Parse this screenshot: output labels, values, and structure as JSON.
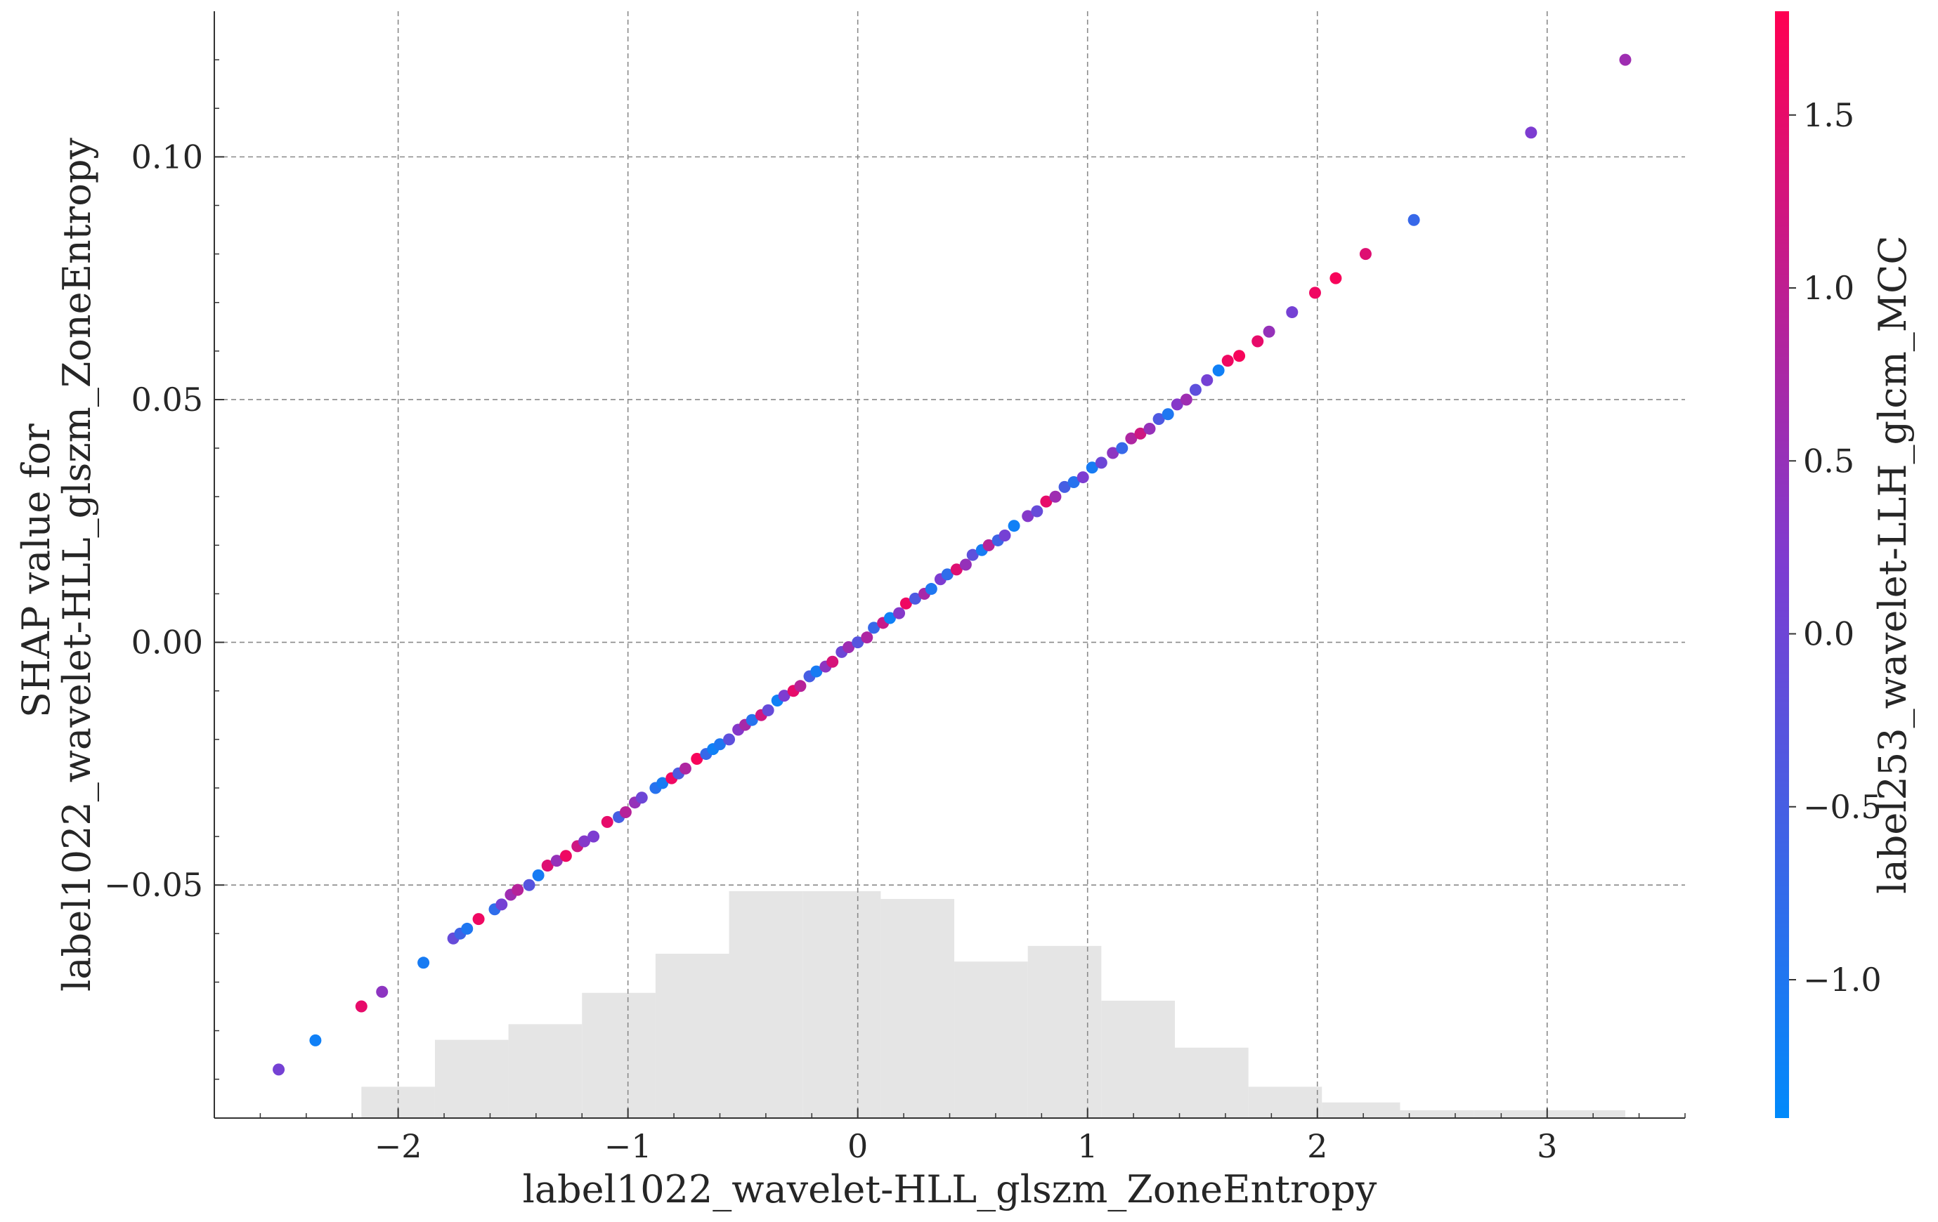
{
  "chart_data": {
    "type": "scatter",
    "title": "",
    "xlabel": "label1022_wavelet-HLL_glszm_ZoneEntropy",
    "ylabel_lines": [
      "SHAP value for",
      "label1022_wavelet-HLL_glszm_ZoneEntropy"
    ],
    "colorbar_label": "label253_wavelet-LLH_glcm_MCC",
    "xlim": [
      -2.8,
      3.6
    ],
    "ylim": [
      -0.098,
      0.13
    ],
    "x_ticks": [
      -2,
      -1,
      0,
      1,
      2,
      3
    ],
    "x_tick_labels": [
      "−2",
      "−1",
      "0",
      "1",
      "2",
      "3"
    ],
    "y_ticks": [
      -0.05,
      0.0,
      0.05,
      0.1
    ],
    "y_tick_labels": [
      "−0.05",
      "0.00",
      "0.05",
      "0.10"
    ],
    "colorbar_range": [
      -1.4,
      1.8
    ],
    "colorbar_ticks": [
      -1.0,
      -0.5,
      0.0,
      0.5,
      1.0,
      1.5
    ],
    "colorbar_tick_labels": [
      "−1.0",
      "−0.5",
      "0.0",
      "0.5",
      "1.0",
      "1.5"
    ],
    "colormap_stops": [
      "#008afb",
      "#7d3cd1",
      "#ff0052"
    ],
    "grid": true,
    "histogram": {
      "color": "#e5e5e5",
      "bins": [
        {
          "x0": -2.16,
          "x1": -1.84,
          "count": 4
        },
        {
          "x0": -1.84,
          "x1": -1.52,
          "count": 10
        },
        {
          "x0": -1.52,
          "x1": -1.2,
          "count": 12
        },
        {
          "x0": -1.2,
          "x1": -0.88,
          "count": 16
        },
        {
          "x0": -0.88,
          "x1": -0.56,
          "count": 21
        },
        {
          "x0": -0.56,
          "x1": -0.24,
          "count": 29
        },
        {
          "x0": -0.24,
          "x1": 0.1,
          "count": 29
        },
        {
          "x0": 0.1,
          "x1": 0.42,
          "count": 28
        },
        {
          "x0": 0.42,
          "x1": 0.74,
          "count": 20
        },
        {
          "x0": 0.74,
          "x1": 1.06,
          "count": 22
        },
        {
          "x0": 1.06,
          "x1": 1.38,
          "count": 15
        },
        {
          "x0": 1.38,
          "x1": 1.7,
          "count": 9
        },
        {
          "x0": 1.7,
          "x1": 2.02,
          "count": 4
        },
        {
          "x0": 2.02,
          "x1": 2.36,
          "count": 2
        },
        {
          "x0": 2.36,
          "x1": 2.68,
          "count": 1
        },
        {
          "x0": 2.68,
          "x1": 3.0,
          "count": 1
        },
        {
          "x0": 3.0,
          "x1": 3.34,
          "count": 1
        }
      ]
    },
    "points": [
      {
        "x": -2.52,
        "y": -0.088,
        "c": 0.1
      },
      {
        "x": -2.36,
        "y": -0.082,
        "c": -1.2
      },
      {
        "x": -2.16,
        "y": -0.075,
        "c": 1.5
      },
      {
        "x": -2.07,
        "y": -0.072,
        "c": 0.4
      },
      {
        "x": -1.89,
        "y": -0.066,
        "c": -1.1
      },
      {
        "x": -1.76,
        "y": -0.061,
        "c": -0.1
      },
      {
        "x": -1.73,
        "y": -0.06,
        "c": -0.6
      },
      {
        "x": -1.7,
        "y": -0.059,
        "c": -1.0
      },
      {
        "x": -1.65,
        "y": -0.057,
        "c": 1.6
      },
      {
        "x": -1.58,
        "y": -0.055,
        "c": -0.8
      },
      {
        "x": -1.55,
        "y": -0.054,
        "c": 0.1
      },
      {
        "x": -1.51,
        "y": -0.052,
        "c": 0.6
      },
      {
        "x": -1.48,
        "y": -0.051,
        "c": 0.9
      },
      {
        "x": -1.43,
        "y": -0.05,
        "c": -0.3
      },
      {
        "x": -1.39,
        "y": -0.048,
        "c": -1.1
      },
      {
        "x": -1.35,
        "y": -0.046,
        "c": 1.4
      },
      {
        "x": -1.31,
        "y": -0.045,
        "c": 0.5
      },
      {
        "x": -1.27,
        "y": -0.044,
        "c": 1.6
      },
      {
        "x": -1.22,
        "y": -0.042,
        "c": 1.2
      },
      {
        "x": -1.19,
        "y": -0.041,
        "c": 0.3
      },
      {
        "x": -1.15,
        "y": -0.04,
        "c": 0.2
      },
      {
        "x": -1.09,
        "y": -0.037,
        "c": 1.5
      },
      {
        "x": -1.04,
        "y": -0.036,
        "c": -0.5
      },
      {
        "x": -1.01,
        "y": -0.035,
        "c": 0.9
      },
      {
        "x": -0.97,
        "y": -0.033,
        "c": 0.5
      },
      {
        "x": -0.94,
        "y": -0.032,
        "c": 0.0
      },
      {
        "x": -0.88,
        "y": -0.03,
        "c": -0.9
      },
      {
        "x": -0.85,
        "y": -0.029,
        "c": -1.1
      },
      {
        "x": -0.81,
        "y": -0.028,
        "c": 1.6
      },
      {
        "x": -0.78,
        "y": -0.027,
        "c": -0.4
      },
      {
        "x": -0.75,
        "y": -0.026,
        "c": 0.8
      },
      {
        "x": -0.7,
        "y": -0.024,
        "c": 1.7
      },
      {
        "x": -0.66,
        "y": -0.023,
        "c": -0.7
      },
      {
        "x": -0.63,
        "y": -0.022,
        "c": -1.2
      },
      {
        "x": -0.6,
        "y": -0.021,
        "c": -1.0
      },
      {
        "x": -0.56,
        "y": -0.02,
        "c": -0.2
      },
      {
        "x": -0.52,
        "y": -0.018,
        "c": 0.3
      },
      {
        "x": -0.49,
        "y": -0.017,
        "c": 0.7
      },
      {
        "x": -0.46,
        "y": -0.016,
        "c": -0.9
      },
      {
        "x": -0.42,
        "y": -0.015,
        "c": 1.2
      },
      {
        "x": -0.39,
        "y": -0.014,
        "c": -0.1
      },
      {
        "x": -0.35,
        "y": -0.012,
        "c": -1.2
      },
      {
        "x": -0.32,
        "y": -0.011,
        "c": 0.2
      },
      {
        "x": -0.28,
        "y": -0.01,
        "c": 1.5
      },
      {
        "x": -0.25,
        "y": -0.009,
        "c": 0.9
      },
      {
        "x": -0.21,
        "y": -0.007,
        "c": -0.5
      },
      {
        "x": -0.18,
        "y": -0.006,
        "c": -1.1
      },
      {
        "x": -0.14,
        "y": -0.005,
        "c": 0.4
      },
      {
        "x": -0.11,
        "y": -0.004,
        "c": 1.3
      },
      {
        "x": -0.07,
        "y": -0.002,
        "c": 0.0
      },
      {
        "x": -0.04,
        "y": -0.001,
        "c": 0.6
      },
      {
        "x": 0.0,
        "y": 0.0,
        "c": -0.3
      },
      {
        "x": 0.04,
        "y": 0.001,
        "c": 0.8
      },
      {
        "x": 0.07,
        "y": 0.003,
        "c": -0.7
      },
      {
        "x": 0.11,
        "y": 0.004,
        "c": 1.1
      },
      {
        "x": 0.14,
        "y": 0.005,
        "c": -1.2
      },
      {
        "x": 0.18,
        "y": 0.006,
        "c": 0.3
      },
      {
        "x": 0.21,
        "y": 0.008,
        "c": 1.6
      },
      {
        "x": 0.25,
        "y": 0.009,
        "c": -0.4
      },
      {
        "x": 0.29,
        "y": 0.01,
        "c": 0.7
      },
      {
        "x": 0.32,
        "y": 0.011,
        "c": -1.0
      },
      {
        "x": 0.36,
        "y": 0.013,
        "c": 0.2
      },
      {
        "x": 0.39,
        "y": 0.014,
        "c": -0.8
      },
      {
        "x": 0.43,
        "y": 0.015,
        "c": 1.4
      },
      {
        "x": 0.47,
        "y": 0.016,
        "c": 0.5
      },
      {
        "x": 0.5,
        "y": 0.018,
        "c": -0.2
      },
      {
        "x": 0.54,
        "y": 0.019,
        "c": -1.1
      },
      {
        "x": 0.57,
        "y": 0.02,
        "c": 0.9
      },
      {
        "x": 0.61,
        "y": 0.021,
        "c": -0.6
      },
      {
        "x": 0.64,
        "y": 0.022,
        "c": 0.1
      },
      {
        "x": 0.68,
        "y": 0.024,
        "c": -1.2
      },
      {
        "x": 0.74,
        "y": 0.026,
        "c": 0.3
      },
      {
        "x": 0.78,
        "y": 0.027,
        "c": -0.1
      },
      {
        "x": 0.82,
        "y": 0.029,
        "c": 1.5
      },
      {
        "x": 0.86,
        "y": 0.03,
        "c": 0.6
      },
      {
        "x": 0.9,
        "y": 0.032,
        "c": -0.5
      },
      {
        "x": 0.94,
        "y": 0.033,
        "c": -0.9
      },
      {
        "x": 0.98,
        "y": 0.034,
        "c": 0.2
      },
      {
        "x": 1.02,
        "y": 0.036,
        "c": -1.1
      },
      {
        "x": 1.06,
        "y": 0.037,
        "c": 0.0
      },
      {
        "x": 1.11,
        "y": 0.039,
        "c": 0.4
      },
      {
        "x": 1.15,
        "y": 0.04,
        "c": -0.7
      },
      {
        "x": 1.19,
        "y": 0.042,
        "c": 0.8
      },
      {
        "x": 1.23,
        "y": 0.043,
        "c": 1.2
      },
      {
        "x": 1.27,
        "y": 0.044,
        "c": 0.5
      },
      {
        "x": 1.31,
        "y": 0.046,
        "c": -0.4
      },
      {
        "x": 1.35,
        "y": 0.047,
        "c": -1.0
      },
      {
        "x": 1.39,
        "y": 0.049,
        "c": 0.3
      },
      {
        "x": 1.43,
        "y": 0.05,
        "c": 0.6
      },
      {
        "x": 1.47,
        "y": 0.052,
        "c": -0.2
      },
      {
        "x": 1.52,
        "y": 0.054,
        "c": 0.1
      },
      {
        "x": 1.57,
        "y": 0.056,
        "c": -1.2
      },
      {
        "x": 1.61,
        "y": 0.058,
        "c": 1.6
      },
      {
        "x": 1.66,
        "y": 0.059,
        "c": 1.7
      },
      {
        "x": 1.74,
        "y": 0.062,
        "c": 1.5
      },
      {
        "x": 1.79,
        "y": 0.064,
        "c": 0.5
      },
      {
        "x": 1.89,
        "y": 0.068,
        "c": 0.1
      },
      {
        "x": 1.99,
        "y": 0.072,
        "c": 1.6
      },
      {
        "x": 2.08,
        "y": 0.075,
        "c": 1.7
      },
      {
        "x": 2.21,
        "y": 0.08,
        "c": 1.4
      },
      {
        "x": 2.42,
        "y": 0.087,
        "c": -0.7
      },
      {
        "x": 2.93,
        "y": 0.105,
        "c": 0.2
      },
      {
        "x": 3.34,
        "y": 0.12,
        "c": 0.6
      }
    ]
  }
}
